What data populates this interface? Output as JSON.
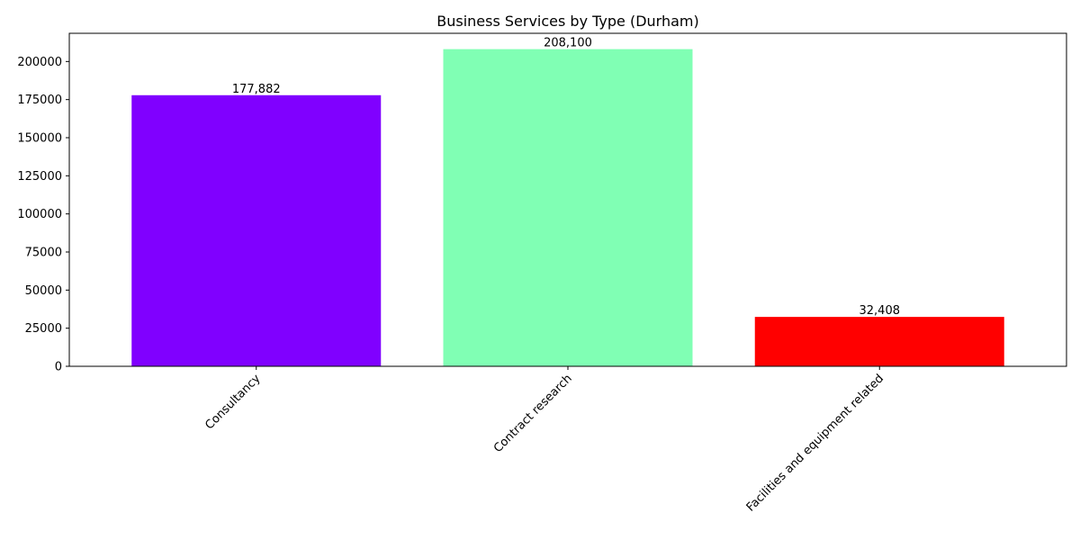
{
  "chart_data": {
    "type": "bar",
    "title": "Business Services by Type (Durham)",
    "xlabel": "",
    "ylabel": "",
    "categories": [
      "Consultancy",
      "Contract research",
      "Facilities and equipment related"
    ],
    "values": [
      177882,
      208100,
      32408
    ],
    "value_labels": [
      "177,882",
      "208,100",
      "32,408"
    ],
    "colors": [
      "#8000ff",
      "#80ffb4",
      "#ff0000"
    ],
    "ylim": [
      0,
      218505
    ],
    "yticks": [
      0,
      25000,
      50000,
      75000,
      100000,
      125000,
      150000,
      175000,
      200000
    ],
    "ytick_labels": [
      "0",
      "25000",
      "50000",
      "75000",
      "100000",
      "125000",
      "150000",
      "175000",
      "200000"
    ],
    "grid": false,
    "legend": "none"
  }
}
